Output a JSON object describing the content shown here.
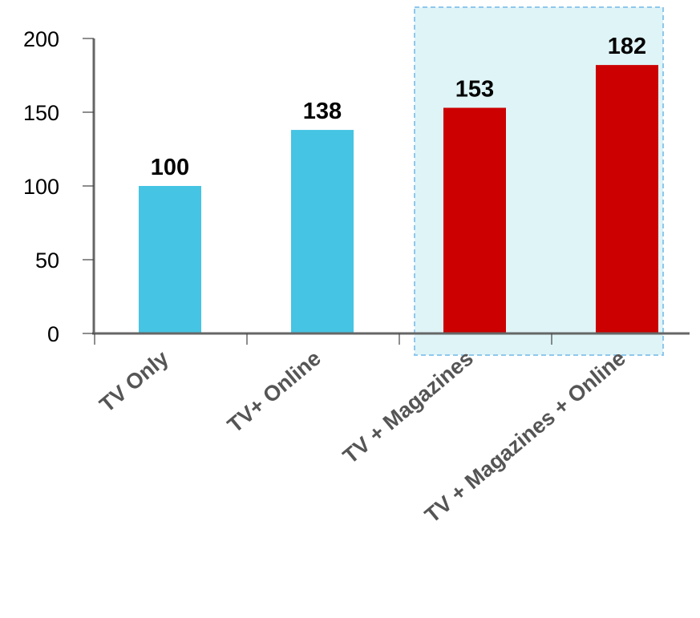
{
  "chart_data": {
    "type": "bar",
    "categories": [
      "TV Only",
      "TV+ Online",
      "TV + Magazines",
      "TV + Magazines + Online"
    ],
    "values": [
      100,
      138,
      153,
      182
    ],
    "bar_colors": [
      "#45c4e3",
      "#45c4e3",
      "#cc0000",
      "#cc0000"
    ],
    "data_labels": [
      "100",
      "138",
      "153",
      "182"
    ],
    "y_ticks": [
      0,
      50,
      100,
      150,
      200
    ],
    "ylim": [
      0,
      200
    ],
    "grid": false,
    "highlight": {
      "categories": [
        "TV + Magazines",
        "TV + Magazines + Online"
      ],
      "fill": "#dff4f7",
      "border": "#8ec8ec"
    }
  }
}
